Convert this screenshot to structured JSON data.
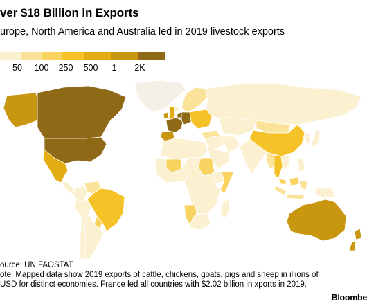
{
  "header": {
    "title": "ver $18 Billion in Exports",
    "subtitle": "urope, North America and Australia led in 2019 livestock exports"
  },
  "legend": {
    "bins": [
      {
        "label": "",
        "color": "#fbf0cf"
      },
      {
        "label": "50",
        "color": "#fbe39a"
      },
      {
        "label": "100",
        "color": "#f9d35f"
      },
      {
        "label": "250",
        "color": "#f5c227"
      },
      {
        "label": "500",
        "color": "#e1ad12"
      },
      {
        "label": "1",
        "color": "#c8960f"
      },
      {
        "label": "2K",
        "color": "#8f6a16"
      }
    ]
  },
  "map": {
    "no_data_color": "#f4f0e8",
    "stroke_color": "#ffffff",
    "regions": [
      {
        "name": "Canada",
        "color": "#8f6a16"
      },
      {
        "name": "United States",
        "color": "#8f6a16"
      },
      {
        "name": "Alaska",
        "color": "#c8960f"
      },
      {
        "name": "Mexico",
        "color": "#e1ad12"
      },
      {
        "name": "Central America",
        "color": "#fbf0cf"
      },
      {
        "name": "Colombia",
        "color": "#fbf0cf"
      },
      {
        "name": "Venezuela",
        "color": "#fbe39a"
      },
      {
        "name": "Brazil",
        "color": "#f5c227"
      },
      {
        "name": "Peru",
        "color": "#fbf0cf"
      },
      {
        "name": "Paraguay",
        "color": "#f9d35f"
      },
      {
        "name": "Argentina",
        "color": "#fbf0cf"
      },
      {
        "name": "Chile",
        "color": "#fbf0cf"
      },
      {
        "name": "Greenland",
        "color": "#f4f0e8"
      },
      {
        "name": "Iceland",
        "color": "#fbf0cf"
      },
      {
        "name": "Ireland",
        "color": "#c8960f"
      },
      {
        "name": "United Kingdom",
        "color": "#e1ad12"
      },
      {
        "name": "France",
        "color": "#8f6a16"
      },
      {
        "name": "Spain",
        "color": "#c8960f"
      },
      {
        "name": "Germany",
        "color": "#8f6a16"
      },
      {
        "name": "Netherlands",
        "color": "#8f6a16"
      },
      {
        "name": "Scandinavia",
        "color": "#fbe39a"
      },
      {
        "name": "Eastern Europe",
        "color": "#f5c227"
      },
      {
        "name": "Russia",
        "color": "#fbf0cf"
      },
      {
        "name": "Kazakhstan",
        "color": "#fbf0cf"
      },
      {
        "name": "Mongolia",
        "color": "#fbe39a"
      },
      {
        "name": "China",
        "color": "#f5c227"
      },
      {
        "name": "Turkey",
        "color": "#fbe39a"
      },
      {
        "name": "Middle East",
        "color": "#fbf0cf"
      },
      {
        "name": "Iran",
        "color": "#fbf0cf"
      },
      {
        "name": "Saudi Arabia",
        "color": "#fbf0cf"
      },
      {
        "name": "India",
        "color": "#fbf0cf"
      },
      {
        "name": "Myanmar",
        "color": "#fbe39a"
      },
      {
        "name": "Thailand",
        "color": "#f5c227"
      },
      {
        "name": "Vietnam",
        "color": "#fbf0cf"
      },
      {
        "name": "Korea",
        "color": "#fbf0cf"
      },
      {
        "name": "Japan",
        "color": "#fbf0cf"
      },
      {
        "name": "Philippines",
        "color": "#fbf0cf"
      },
      {
        "name": "Indonesia",
        "color": "#fbe39a"
      },
      {
        "name": "Malaysia",
        "color": "#f9d35f"
      },
      {
        "name": "North Africa",
        "color": "#fbf0cf"
      },
      {
        "name": "West Africa",
        "color": "#fbf0cf"
      },
      {
        "name": "Mali",
        "color": "#f9d35f"
      },
      {
        "name": "Sudan",
        "color": "#f9d35f"
      },
      {
        "name": "Ethiopia",
        "color": "#fbf0cf"
      },
      {
        "name": "Somalia",
        "color": "#f9d35f"
      },
      {
        "name": "Central Africa",
        "color": "#fbf0cf"
      },
      {
        "name": "Namibia",
        "color": "#f9d35f"
      },
      {
        "name": "South Africa",
        "color": "#fbf0cf"
      },
      {
        "name": "Madagascar",
        "color": "#fbf0cf"
      },
      {
        "name": "Australia",
        "color": "#c8960f"
      },
      {
        "name": "New Zealand",
        "color": "#c8960f"
      },
      {
        "name": "Papua New Guinea",
        "color": "#fbf0cf"
      }
    ]
  },
  "footer": {
    "source": "ource: UN FAOSTAT",
    "note": "ote: Mapped data show 2019 exports of cattle, chickens, goats, pigs and sheep in illions of USD for distinct economies. France led all countries with $2.02 billion in xports in 2019.",
    "brand": "Bloombe"
  }
}
